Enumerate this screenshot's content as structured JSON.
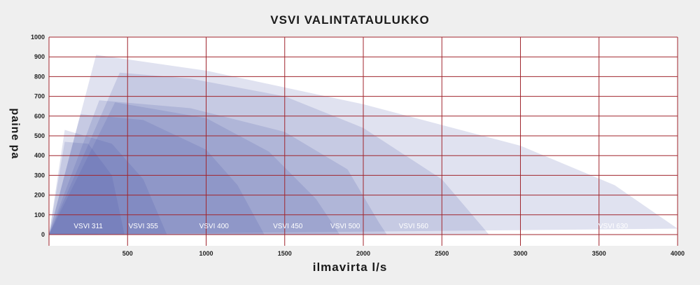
{
  "chart_data": {
    "type": "area",
    "title": "VSVI VALINTATAULUKKO",
    "xlabel": "ilmavirta l/s",
    "ylabel": "paine pa",
    "xlim": [
      0,
      4000
    ],
    "ylim": [
      0,
      1000
    ],
    "xticks": [
      500,
      1000,
      1500,
      2000,
      2500,
      3000,
      3500,
      4000
    ],
    "yticks": [
      0,
      100,
      200,
      300,
      400,
      500,
      600,
      700,
      800,
      900,
      1000
    ],
    "grid": true,
    "grid_color": "#a0262e",
    "fill_color": "#4a54a6",
    "series": [
      {
        "name": "VSVI 630",
        "label_x": 3590,
        "points": [
          [
            0,
            0
          ],
          [
            300,
            910
          ],
          [
            1000,
            830
          ],
          [
            2000,
            660
          ],
          [
            3000,
            450
          ],
          [
            3600,
            250
          ],
          [
            4000,
            30
          ]
        ]
      },
      {
        "name": "VSVI 560",
        "label_x": 2320,
        "points": [
          [
            0,
            0
          ],
          [
            450,
            820
          ],
          [
            900,
            790
          ],
          [
            1500,
            700
          ],
          [
            2000,
            540
          ],
          [
            2500,
            280
          ],
          [
            2800,
            0
          ]
        ]
      },
      {
        "name": "VSVI 500",
        "label_x": 1885,
        "points": [
          [
            0,
            0
          ],
          [
            320,
            680
          ],
          [
            900,
            640
          ],
          [
            1500,
            520
          ],
          [
            1900,
            330
          ],
          [
            2100,
            60
          ],
          [
            2150,
            0
          ]
        ]
      },
      {
        "name": "VSVI 450",
        "label_x": 1520,
        "points": [
          [
            0,
            0
          ],
          [
            420,
            670
          ],
          [
            1000,
            590
          ],
          [
            1400,
            420
          ],
          [
            1700,
            180
          ],
          [
            1850,
            0
          ]
        ]
      },
      {
        "name": "VSVI 400",
        "label_x": 1050,
        "points": [
          [
            0,
            0
          ],
          [
            200,
            610
          ],
          [
            600,
            580
          ],
          [
            1000,
            430
          ],
          [
            1200,
            250
          ],
          [
            1370,
            0
          ]
        ]
      },
      {
        "name": "VSVI 355",
        "label_x": 600,
        "points": [
          [
            0,
            0
          ],
          [
            100,
            530
          ],
          [
            400,
            460
          ],
          [
            600,
            280
          ],
          [
            750,
            0
          ]
        ]
      },
      {
        "name": "VSVI 311",
        "label_x": 250,
        "points": [
          [
            0,
            0
          ],
          [
            100,
            470
          ],
          [
            250,
            460
          ],
          [
            400,
            300
          ],
          [
            480,
            0
          ]
        ]
      }
    ]
  }
}
